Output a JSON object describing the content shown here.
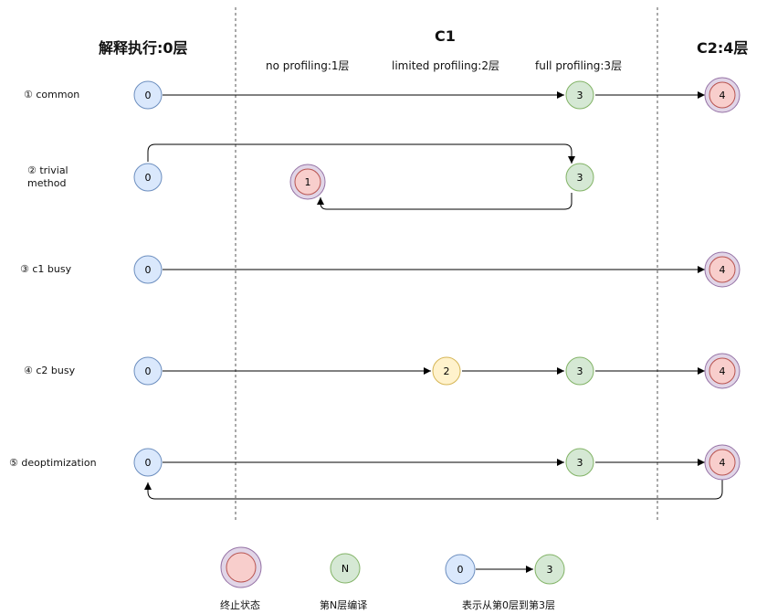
{
  "headers": {
    "interpreter": "解释执行:0层",
    "c1": "C1",
    "c2": "C2:4层",
    "c1_levels": [
      "no profiling:1层",
      "limited profiling:2层",
      "full profiling:3层"
    ]
  },
  "rows": [
    {
      "label": "① common"
    },
    {
      "label": "② trivial\nmethod"
    },
    {
      "label": "③ c1 busy"
    },
    {
      "label": "④ c2 busy"
    },
    {
      "label": "⑤ deoptimization"
    }
  ],
  "legend": {
    "terminal_label": "终止状态",
    "level_label": "第N层编译",
    "level_node_text": "N",
    "transition_label": "表示从第0层到第3层",
    "from_level": "0",
    "to_level": "3"
  },
  "colors": {
    "interp_fill": "#dae8fc",
    "interp_stroke": "#6c8ebf",
    "c1_fill": "#d5e8d4",
    "c1_stroke": "#82b366",
    "limited_fill": "#fff2cc",
    "limited_stroke": "#d6b656",
    "term_fill": "#f8cecc",
    "term_stroke": "#b85450",
    "term_ring": "#9673a6",
    "term_ring_fill": "#e1d5e7"
  }
}
